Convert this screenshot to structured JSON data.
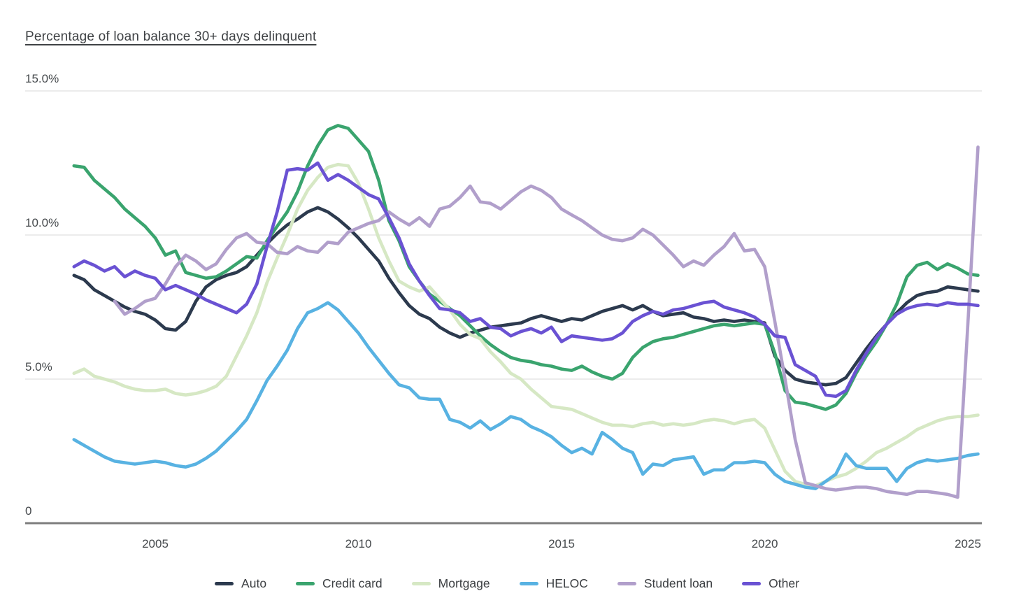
{
  "chart_data": {
    "type": "line",
    "title": "Percentage of loan balance 30+ days delinquent",
    "x_unit": "year, quarterly observations",
    "x_range": [
      2003.0,
      2025.25
    ],
    "y_range": [
      0,
      15
    ],
    "grid": "horizontal",
    "legend_position": "bottom",
    "y_ticks": [
      {
        "value": 15,
        "label": "15.0%"
      },
      {
        "value": 10,
        "label": "10.0%"
      },
      {
        "value": 5,
        "label": "5.0%"
      },
      {
        "value": 0,
        "label": "0"
      }
    ],
    "x_ticks": [
      {
        "value": 2005,
        "label": "2005"
      },
      {
        "value": 2010,
        "label": "2010"
      },
      {
        "value": 2015,
        "label": "2015"
      },
      {
        "value": 2020,
        "label": "2020"
      },
      {
        "value": 2025,
        "label": "2025"
      }
    ],
    "series": [
      {
        "name": "Auto",
        "color": "#2c3a4e",
        "start": 2003.0,
        "step": 0.25,
        "values": [
          8.6,
          8.45,
          8.1,
          7.9,
          7.7,
          7.5,
          7.35,
          7.25,
          7.05,
          6.75,
          6.7,
          7.0,
          7.7,
          8.2,
          8.45,
          8.6,
          8.7,
          8.9,
          9.3,
          9.7,
          10.05,
          10.35,
          10.55,
          10.8,
          10.95,
          10.8,
          10.55,
          10.25,
          9.9,
          9.5,
          9.1,
          8.5,
          8.0,
          7.55,
          7.25,
          7.1,
          6.8,
          6.6,
          6.45,
          6.6,
          6.7,
          6.8,
          6.85,
          6.9,
          6.95,
          7.1,
          7.2,
          7.1,
          7.0,
          7.1,
          7.05,
          7.2,
          7.35,
          7.45,
          7.55,
          7.4,
          7.55,
          7.35,
          7.2,
          7.25,
          7.3,
          7.15,
          7.1,
          7.0,
          7.05,
          7.0,
          7.05,
          7.0,
          6.95,
          5.8,
          5.3,
          5.0,
          4.9,
          4.85,
          4.8,
          4.85,
          5.05,
          5.55,
          6.05,
          6.5,
          6.9,
          7.3,
          7.65,
          7.9,
          8.0,
          8.05,
          8.2,
          8.15,
          8.1,
          8.05
        ]
      },
      {
        "name": "Credit card",
        "color": "#3aa46e",
        "start": 2003.0,
        "step": 0.25,
        "values": [
          12.4,
          12.35,
          11.9,
          11.6,
          11.3,
          10.9,
          10.6,
          10.3,
          9.9,
          9.3,
          9.45,
          8.7,
          8.6,
          8.5,
          8.55,
          8.75,
          9.0,
          9.25,
          9.2,
          9.8,
          10.3,
          10.8,
          11.5,
          12.4,
          13.1,
          13.65,
          13.8,
          13.7,
          13.3,
          12.9,
          11.9,
          10.5,
          9.8,
          8.9,
          8.4,
          7.95,
          7.7,
          7.45,
          7.2,
          6.85,
          6.5,
          6.2,
          5.95,
          5.75,
          5.65,
          5.6,
          5.5,
          5.45,
          5.35,
          5.3,
          5.45,
          5.25,
          5.1,
          5.0,
          5.2,
          5.75,
          6.1,
          6.3,
          6.4,
          6.45,
          6.55,
          6.65,
          6.75,
          6.85,
          6.9,
          6.85,
          6.9,
          6.95,
          6.9,
          5.9,
          4.6,
          4.2,
          4.15,
          4.05,
          3.95,
          4.1,
          4.5,
          5.2,
          5.8,
          6.3,
          6.9,
          7.6,
          8.55,
          8.95,
          9.05,
          8.8,
          9.0,
          8.85,
          8.65,
          8.6
        ]
      },
      {
        "name": "Mortgage",
        "color": "#d6e8c4",
        "start": 2003.0,
        "step": 0.25,
        "values": [
          5.2,
          5.35,
          5.1,
          5.0,
          4.9,
          4.75,
          4.65,
          4.6,
          4.6,
          4.65,
          4.5,
          4.45,
          4.5,
          4.6,
          4.75,
          5.1,
          5.8,
          6.5,
          7.3,
          8.35,
          9.2,
          10.0,
          10.9,
          11.55,
          12.0,
          12.35,
          12.45,
          12.4,
          11.8,
          10.9,
          9.9,
          9.1,
          8.4,
          8.2,
          8.05,
          8.2,
          7.8,
          7.4,
          6.9,
          6.55,
          6.4,
          5.95,
          5.6,
          5.2,
          5.0,
          4.65,
          4.35,
          4.05,
          4.0,
          3.95,
          3.8,
          3.65,
          3.5,
          3.4,
          3.4,
          3.35,
          3.45,
          3.5,
          3.4,
          3.45,
          3.4,
          3.45,
          3.55,
          3.6,
          3.55,
          3.45,
          3.55,
          3.6,
          3.3,
          2.55,
          1.8,
          1.45,
          1.35,
          1.3,
          1.45,
          1.6,
          1.7,
          1.9,
          2.15,
          2.45,
          2.6,
          2.8,
          3.0,
          3.25,
          3.4,
          3.55,
          3.65,
          3.7,
          3.7,
          3.75
        ]
      },
      {
        "name": "HELOC",
        "color": "#58b2e2",
        "start": 2003.0,
        "step": 0.25,
        "values": [
          2.9,
          2.7,
          2.5,
          2.3,
          2.15,
          2.1,
          2.05,
          2.1,
          2.15,
          2.1,
          2.0,
          1.95,
          2.05,
          2.25,
          2.5,
          2.85,
          3.2,
          3.6,
          4.25,
          4.95,
          5.45,
          6.0,
          6.75,
          7.3,
          7.45,
          7.65,
          7.4,
          7.0,
          6.6,
          6.1,
          5.65,
          5.2,
          4.8,
          4.7,
          4.35,
          4.3,
          4.3,
          3.6,
          3.5,
          3.3,
          3.55,
          3.25,
          3.45,
          3.7,
          3.6,
          3.35,
          3.2,
          3.0,
          2.7,
          2.45,
          2.6,
          2.4,
          3.15,
          2.9,
          2.6,
          2.45,
          1.7,
          2.05,
          2.0,
          2.2,
          2.25,
          2.3,
          1.7,
          1.85,
          1.85,
          2.1,
          2.1,
          2.15,
          2.1,
          1.7,
          1.45,
          1.35,
          1.25,
          1.2,
          1.45,
          1.7,
          2.4,
          2.0,
          1.9,
          1.9,
          1.9,
          1.45,
          1.9,
          2.1,
          2.2,
          2.15,
          2.2,
          2.25,
          2.35,
          2.4
        ]
      },
      {
        "name": "Student loan",
        "color": "#b19fcb",
        "start": 2004.0,
        "step": 0.25,
        "values": [
          7.7,
          7.25,
          7.45,
          7.7,
          7.8,
          8.3,
          8.9,
          9.3,
          9.1,
          8.8,
          9.0,
          9.5,
          9.9,
          10.05,
          9.75,
          9.7,
          9.4,
          9.35,
          9.6,
          9.45,
          9.4,
          9.75,
          9.7,
          10.1,
          10.25,
          10.4,
          10.5,
          10.8,
          10.55,
          10.35,
          10.6,
          10.3,
          10.9,
          11.0,
          11.3,
          11.7,
          11.15,
          11.1,
          10.9,
          11.2,
          11.5,
          11.7,
          11.55,
          11.3,
          10.9,
          10.7,
          10.5,
          10.25,
          10.0,
          9.85,
          9.8,
          9.9,
          10.2,
          10.0,
          9.65,
          9.3,
          8.9,
          9.1,
          8.95,
          9.3,
          9.6,
          10.05,
          9.45,
          9.5,
          8.9,
          7.0,
          5.0,
          2.9,
          1.4,
          1.3,
          1.2,
          1.15,
          1.2,
          1.25,
          1.25,
          1.2,
          1.1,
          1.05,
          1.0,
          1.1,
          1.1,
          1.05,
          1.0,
          0.9,
          6.9,
          13.05
        ]
      },
      {
        "name": "Other",
        "color": "#6a52d3",
        "start": 2003.0,
        "step": 0.25,
        "values": [
          8.9,
          9.1,
          8.95,
          8.75,
          8.9,
          8.55,
          8.75,
          8.6,
          8.5,
          8.1,
          8.25,
          8.1,
          7.95,
          7.75,
          7.6,
          7.45,
          7.3,
          7.6,
          8.3,
          9.6,
          10.8,
          12.25,
          12.3,
          12.25,
          12.5,
          11.9,
          12.1,
          11.9,
          11.65,
          11.4,
          11.25,
          10.6,
          9.9,
          9.0,
          8.4,
          7.9,
          7.45,
          7.4,
          7.3,
          7.0,
          7.1,
          6.8,
          6.75,
          6.5,
          6.65,
          6.75,
          6.6,
          6.8,
          6.3,
          6.5,
          6.45,
          6.4,
          6.35,
          6.4,
          6.6,
          7.0,
          7.2,
          7.35,
          7.25,
          7.4,
          7.45,
          7.55,
          7.65,
          7.7,
          7.5,
          7.4,
          7.3,
          7.15,
          6.9,
          6.5,
          6.45,
          5.5,
          5.3,
          5.1,
          4.45,
          4.4,
          4.6,
          5.3,
          5.9,
          6.45,
          6.9,
          7.25,
          7.45,
          7.55,
          7.6,
          7.55,
          7.65,
          7.6,
          7.6,
          7.55
        ]
      }
    ],
    "style": {
      "grid_color": "#e5e5e5",
      "zero_axis_color": "#7d7d7d",
      "tick_label_color": "#464a4d",
      "title_color": "#3f4245",
      "background": "#ffffff"
    }
  }
}
